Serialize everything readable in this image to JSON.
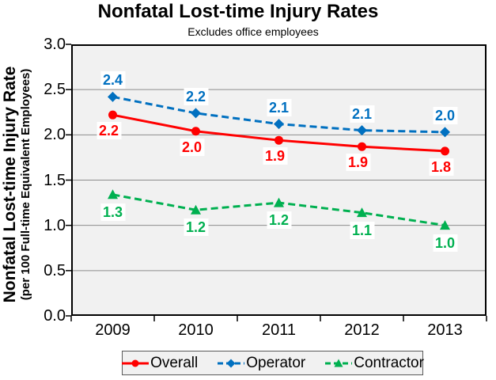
{
  "chart_data": {
    "type": "line",
    "title": "Nonfatal Lost-time Injury Rates",
    "subtitle": "Excludes office employees",
    "y_axis_title": "Nonfatal Lost-time Injury Rate",
    "y_axis_subtitle": "(per 100 Full-time Equivalent Employees)",
    "categories": [
      "2009",
      "2010",
      "2011",
      "2012",
      "2013"
    ],
    "series": [
      {
        "name": "Overall",
        "color": "#FF0000",
        "line_style": "solid",
        "marker": "circle",
        "label_position": "below",
        "label_offset": 20,
        "label_dx": -5,
        "values": [
          2.2,
          2.0,
          1.9,
          1.9,
          1.8
        ],
        "plot_values": [
          2.22,
          2.04,
          1.94,
          1.87,
          1.82
        ],
        "labels": [
          "2.2",
          "2.0",
          "1.9",
          "1.9",
          "1.8"
        ]
      },
      {
        "name": "Operator",
        "color": "#0070C0",
        "line_style": "dashed",
        "marker": "diamond",
        "label_position": "above",
        "label_offset": -21,
        "label_dx": 0,
        "values": [
          2.4,
          2.2,
          2.1,
          2.1,
          2.0
        ],
        "plot_values": [
          2.42,
          2.24,
          2.12,
          2.05,
          2.03
        ],
        "labels": [
          "2.4",
          "2.2",
          "2.1",
          "2.1",
          "2.0"
        ]
      },
      {
        "name": "Contractor",
        "color": "#00B050",
        "line_style": "dashed",
        "marker": "triangle",
        "label_position": "below",
        "label_offset": 22,
        "label_dx": 0,
        "values": [
          1.3,
          1.2,
          1.2,
          1.1,
          1.0
        ],
        "plot_values": [
          1.34,
          1.17,
          1.25,
          1.14,
          1.0
        ],
        "labels": [
          "1.3",
          "1.2",
          "1.2",
          "1.1",
          "1.0"
        ]
      }
    ],
    "y_ticks": [
      "3.0",
      "2.5",
      "2.0",
      "1.5",
      "1.0",
      "0.5",
      "0.0"
    ],
    "y_range": [
      0,
      3.0
    ],
    "gridlines": "horizontal",
    "legend_position": "bottom",
    "colors": {
      "plot_bg": "#F1F1F1",
      "gridline": "#8C8C8C",
      "axis": "#000000",
      "label_bg": "#FFFFFF",
      "legend_bg": "#F1F1F1",
      "legend_border": "#595959"
    }
  }
}
